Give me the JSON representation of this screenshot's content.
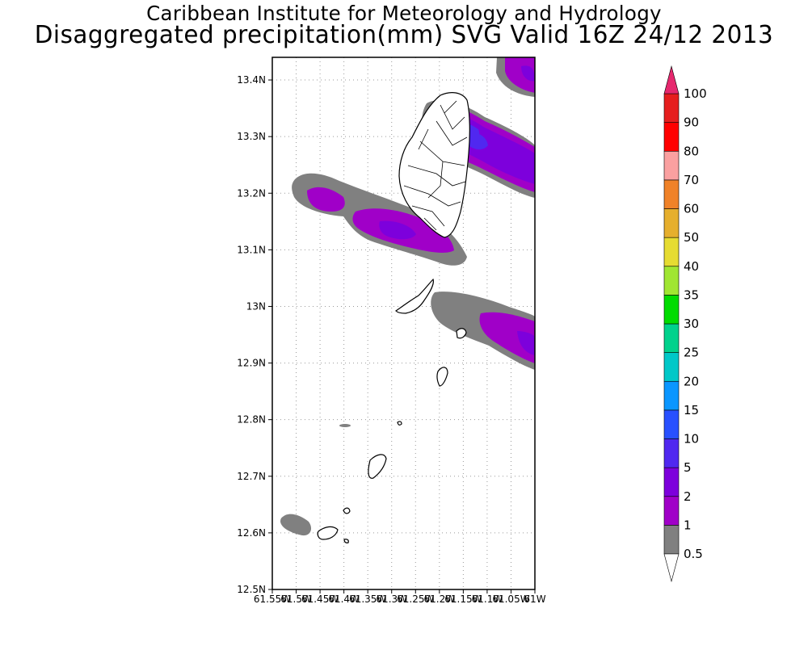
{
  "header": {
    "title": "Caribbean Institute for Meteorology and Hydrology",
    "subtitle": "Disaggregated precipitation(mm) SVG Valid 16Z 24/12 2013"
  },
  "map": {
    "lat_labels": [
      "13.4N",
      "13.3N",
      "13.2N",
      "13.1N",
      "13N",
      "12.9N",
      "12.8N",
      "12.7N",
      "12.6N",
      "12.5N"
    ],
    "lon_labels": [
      "61.55W",
      "61.5W",
      "61.45W",
      "61.4W",
      "61.35W",
      "61.3W",
      "61.25W",
      "61.2W",
      "61.15W",
      "61.1W",
      "61.05W",
      "61W"
    ],
    "lat_range": [
      12.5,
      13.44
    ],
    "lon_range": [
      -61.55,
      -61.0
    ],
    "grid": "dotted"
  },
  "legend": {
    "levels": [
      {
        "label": "0.5",
        "color": "#808080"
      },
      {
        "label": "1",
        "color": "#a000c8"
      },
      {
        "label": "2",
        "color": "#7d00dc"
      },
      {
        "label": "5",
        "color": "#5028f0"
      },
      {
        "label": "10",
        "color": "#2850ff"
      },
      {
        "label": "15",
        "color": "#0a96ff"
      },
      {
        "label": "20",
        "color": "#00c8c8"
      },
      {
        "label": "25",
        "color": "#00d28c"
      },
      {
        "label": "30",
        "color": "#00dc00"
      },
      {
        "label": "35",
        "color": "#a0e632"
      },
      {
        "label": "40",
        "color": "#e6dc32"
      },
      {
        "label": "50",
        "color": "#e6af2d"
      },
      {
        "label": "60",
        "color": "#f08228"
      },
      {
        "label": "70",
        "color": "#faa0a0"
      },
      {
        "label": "80",
        "color": "#ff0000"
      },
      {
        "label": "90",
        "color": "#e61e1e"
      },
      {
        "label": "100",
        "color": "#e6286e"
      }
    ],
    "below_color": "#ffffff",
    "above_color": "#e6286e"
  }
}
